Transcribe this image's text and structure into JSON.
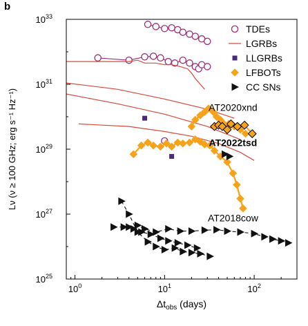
{
  "chart_data": {
    "type": "scatter",
    "panel_label": "b",
    "xlabel": "Δt",
    "xlabel_sub": "obs",
    "xlabel_tail": " (days)",
    "ylabel": "Lν (ν ≥ 100 GHz; erg s⁻¹ Hz⁻¹)",
    "x_scale": "log",
    "y_scale": "log",
    "xlim": [
      0.8,
      300
    ],
    "ylim": [
      1e+25,
      1e+33
    ],
    "x_ticks": [
      {
        "value": 1,
        "label": "10",
        "sup": "0"
      },
      {
        "value": 10,
        "label": "10",
        "sup": "1"
      },
      {
        "value": 100,
        "label": "10",
        "sup": "2"
      }
    ],
    "y_ticks": [
      {
        "value": 1e+25,
        "label": "10",
        "sup": "25"
      },
      {
        "value": 1e+27,
        "label": "10",
        "sup": "27"
      },
      {
        "value": 1e+29,
        "label": "10",
        "sup": "29"
      },
      {
        "value": 1e+31,
        "label": "10",
        "sup": "31"
      },
      {
        "value": 1e+33,
        "label": "10",
        "sup": "33"
      }
    ],
    "grid": false,
    "legend_position": "top-right",
    "colors": {
      "tde": "#9b2d7a",
      "lgrb": "#d94a3a",
      "llgrb": "#4b2a7b",
      "lfbot": "#f5a31a",
      "ccsn": "#111111"
    },
    "legend": [
      {
        "name": "TDEs",
        "marker": "open-circle"
      },
      {
        "name": "LGRBs",
        "marker": "line"
      },
      {
        "name": "LLGRBs",
        "marker": "square"
      },
      {
        "name": "LFBOTs",
        "marker": "diamond"
      },
      {
        "name": "CC SNs",
        "marker": "triangle"
      }
    ],
    "annotations": [
      {
        "text": "AT2020xnd",
        "x": 58,
        "y": 1.5e+30,
        "bold": false
      },
      {
        "text": "AT2022tsd",
        "x": 58,
        "y": 1.25e+29,
        "bold": true
      },
      {
        "text": "AT2018cow",
        "x": 58,
        "y": 6e+26,
        "bold": false
      }
    ],
    "series": [
      {
        "kind": "tde",
        "connect": true,
        "points": [
          [
            6.5,
            7e+32
          ],
          [
            8,
            6e+32
          ],
          [
            10,
            5.2e+32
          ],
          [
            12,
            5.5e+32
          ],
          [
            14,
            4.8e+32
          ],
          [
            16,
            4e+32
          ],
          [
            19,
            3.5e+32
          ],
          [
            22,
            3e+32
          ],
          [
            26,
            2.5e+32
          ],
          [
            30,
            2.1e+32
          ]
        ]
      },
      {
        "kind": "tde",
        "connect": true,
        "points": [
          [
            1.8,
            6.5e+31
          ],
          [
            4,
            5.5e+31
          ],
          [
            6,
            7e+31
          ],
          [
            7.5,
            7.3e+31
          ],
          [
            9,
            6.5e+31
          ],
          [
            11,
            5e+31
          ],
          [
            13,
            4.5e+31
          ],
          [
            16,
            5.5e+31
          ],
          [
            19,
            4.5e+31
          ],
          [
            22,
            3.5e+31
          ],
          [
            24,
            3e+31
          ],
          [
            26,
            4e+31
          ],
          [
            30,
            3.5e+31
          ]
        ]
      },
      {
        "kind": "tde",
        "connect": false,
        "points": [
          [
            10,
            1.8e+29
          ]
        ]
      },
      {
        "kind": "lgrb",
        "points": [
          [
            0.8,
            5e+31
          ],
          [
            2,
            5e+31
          ],
          [
            4,
            5e+31
          ],
          [
            5,
            5.5e+31
          ],
          [
            6,
            4.5e+31
          ],
          [
            8,
            4.5e+31
          ],
          [
            10,
            4e+31
          ],
          [
            12,
            4e+31
          ],
          [
            15,
            3.5e+31
          ],
          [
            18,
            3e+31
          ],
          [
            20,
            2.2e+31
          ],
          [
            22,
            1.5e+31
          ],
          [
            25,
            1e+31
          ],
          [
            28,
            7e+30
          ]
        ]
      },
      {
        "kind": "lgrb",
        "points": [
          [
            0.8,
            1.1e+31
          ],
          [
            3,
            7e+30
          ],
          [
            10,
            3.5e+30
          ],
          [
            30,
            1.7e+30
          ],
          [
            60,
            9e+29
          ]
        ]
      },
      {
        "kind": "lgrb",
        "points": [
          [
            0.8,
            5e+30
          ],
          [
            3,
            2.5e+30
          ],
          [
            10,
            1.2e+30
          ],
          [
            30,
            5e+29
          ],
          [
            70,
            2e+29
          ]
        ]
      },
      {
        "kind": "lgrb",
        "points": [
          [
            1.1,
            6e+29
          ],
          [
            4,
            5e+29
          ],
          [
            10,
            3.5e+29
          ],
          [
            20,
            2.5e+29
          ],
          [
            40,
            1.5e+29
          ],
          [
            70,
            8e+28
          ],
          [
            100,
            4.5e+28
          ]
        ]
      },
      {
        "kind": "llgrb",
        "points": [
          [
            6,
            9e+29
          ],
          [
            12,
            6e+28
          ]
        ]
      },
      {
        "kind": "lfbot",
        "outlined": false,
        "connect": true,
        "points": [
          [
            4.5,
            7e+28
          ],
          [
            5.5,
            1.3e+29
          ],
          [
            6.5,
            1.6e+29
          ],
          [
            7.5,
            1.3e+29
          ],
          [
            9,
            1.2e+29
          ],
          [
            10.5,
            1.5e+29
          ],
          [
            12,
            1.2e+29
          ],
          [
            14,
            1.6e+29
          ],
          [
            16,
            1.5e+29
          ],
          [
            19,
            1.6e+29
          ],
          [
            22,
            2e+29
          ],
          [
            25,
            1.7e+29
          ],
          [
            28,
            1.4e+29
          ],
          [
            32,
            1.3e+29
          ],
          [
            36,
            9e+28
          ],
          [
            42,
            6e+28
          ],
          [
            50,
            4e+28
          ],
          [
            58,
            1.8e+28
          ],
          [
            64,
            8e+27
          ],
          [
            70,
            3e+27
          ],
          [
            75,
            1.5e+27
          ]
        ]
      },
      {
        "kind": "lfbot",
        "outlined": false,
        "connect": true,
        "points": [
          [
            20,
            5e+29
          ],
          [
            22,
            8e+29
          ],
          [
            25,
            1.1e+30
          ],
          [
            28,
            1.4e+30
          ],
          [
            31,
            1.8e+30
          ],
          [
            35,
            1.4e+30
          ],
          [
            38,
            1e+30
          ],
          [
            42,
            8e+29
          ],
          [
            46,
            6e+29
          ],
          [
            52,
            6e+29
          ],
          [
            60,
            5e+29
          ],
          [
            70,
            4e+29
          ],
          [
            80,
            3e+29
          ]
        ]
      },
      {
        "kind": "lfbot",
        "outlined": true,
        "connect": true,
        "points": [
          [
            36,
            5e+29
          ],
          [
            40,
            5.5e+29
          ],
          [
            44,
            5e+29
          ],
          [
            50,
            4e+29
          ],
          [
            55,
            6e+29
          ],
          [
            65,
            5e+29
          ],
          [
            78,
            5.5e+29
          ],
          [
            95,
            3e+29
          ]
        ]
      },
      {
        "kind": "ccsn",
        "connect": true,
        "points": [
          [
            3.3,
            2.5e+27
          ],
          [
            4,
            1e+27
          ],
          [
            5,
            2.8e+26
          ],
          [
            6.5,
            1.4e+26
          ],
          [
            8,
            1e+26
          ],
          [
            10,
            8e+25
          ],
          [
            13,
            9e+25
          ],
          [
            16,
            7e+25
          ],
          [
            20,
            6.5e+25
          ],
          [
            25,
            6e+25
          ],
          [
            32,
            5e+25
          ]
        ]
      },
      {
        "kind": "ccsn",
        "connect": true,
        "points": [
          [
            2.7,
            4e+26
          ],
          [
            3.5,
            4e+26
          ],
          [
            4.5,
            3.5e+26
          ],
          [
            5.5,
            2.8e+26
          ],
          [
            7,
            2.4e+26
          ],
          [
            9,
            1.8e+26
          ],
          [
            11,
            1.5e+26
          ],
          [
            14,
            1.3e+26
          ],
          [
            18,
            1.1e+26
          ],
          [
            23,
            9e+25
          ]
        ]
      },
      {
        "kind": "ccsn",
        "connect": true,
        "points": [
          [
            4,
            4e+26
          ],
          [
            5,
            4.5e+26
          ],
          [
            6,
            3.5e+26
          ],
          [
            8,
            2.8e+26
          ],
          [
            11,
            3.5e+26
          ],
          [
            15,
            3e+26
          ],
          [
            20,
            3e+26
          ],
          [
            28,
            3.2e+26
          ],
          [
            38,
            3.3e+26
          ],
          [
            50,
            3e+26
          ],
          [
            70,
            2.8e+26
          ],
          [
            100,
            2.5e+26
          ],
          [
            130,
            2e+26
          ],
          [
            160,
            1.7e+26
          ],
          [
            200,
            1.5e+26
          ],
          [
            240,
            1.3e+26
          ]
        ]
      },
      {
        "kind": "ccsn",
        "connect": false,
        "points": [
          [
            47,
            7e+28
          ],
          [
            53,
            6e+28
          ]
        ]
      }
    ]
  }
}
